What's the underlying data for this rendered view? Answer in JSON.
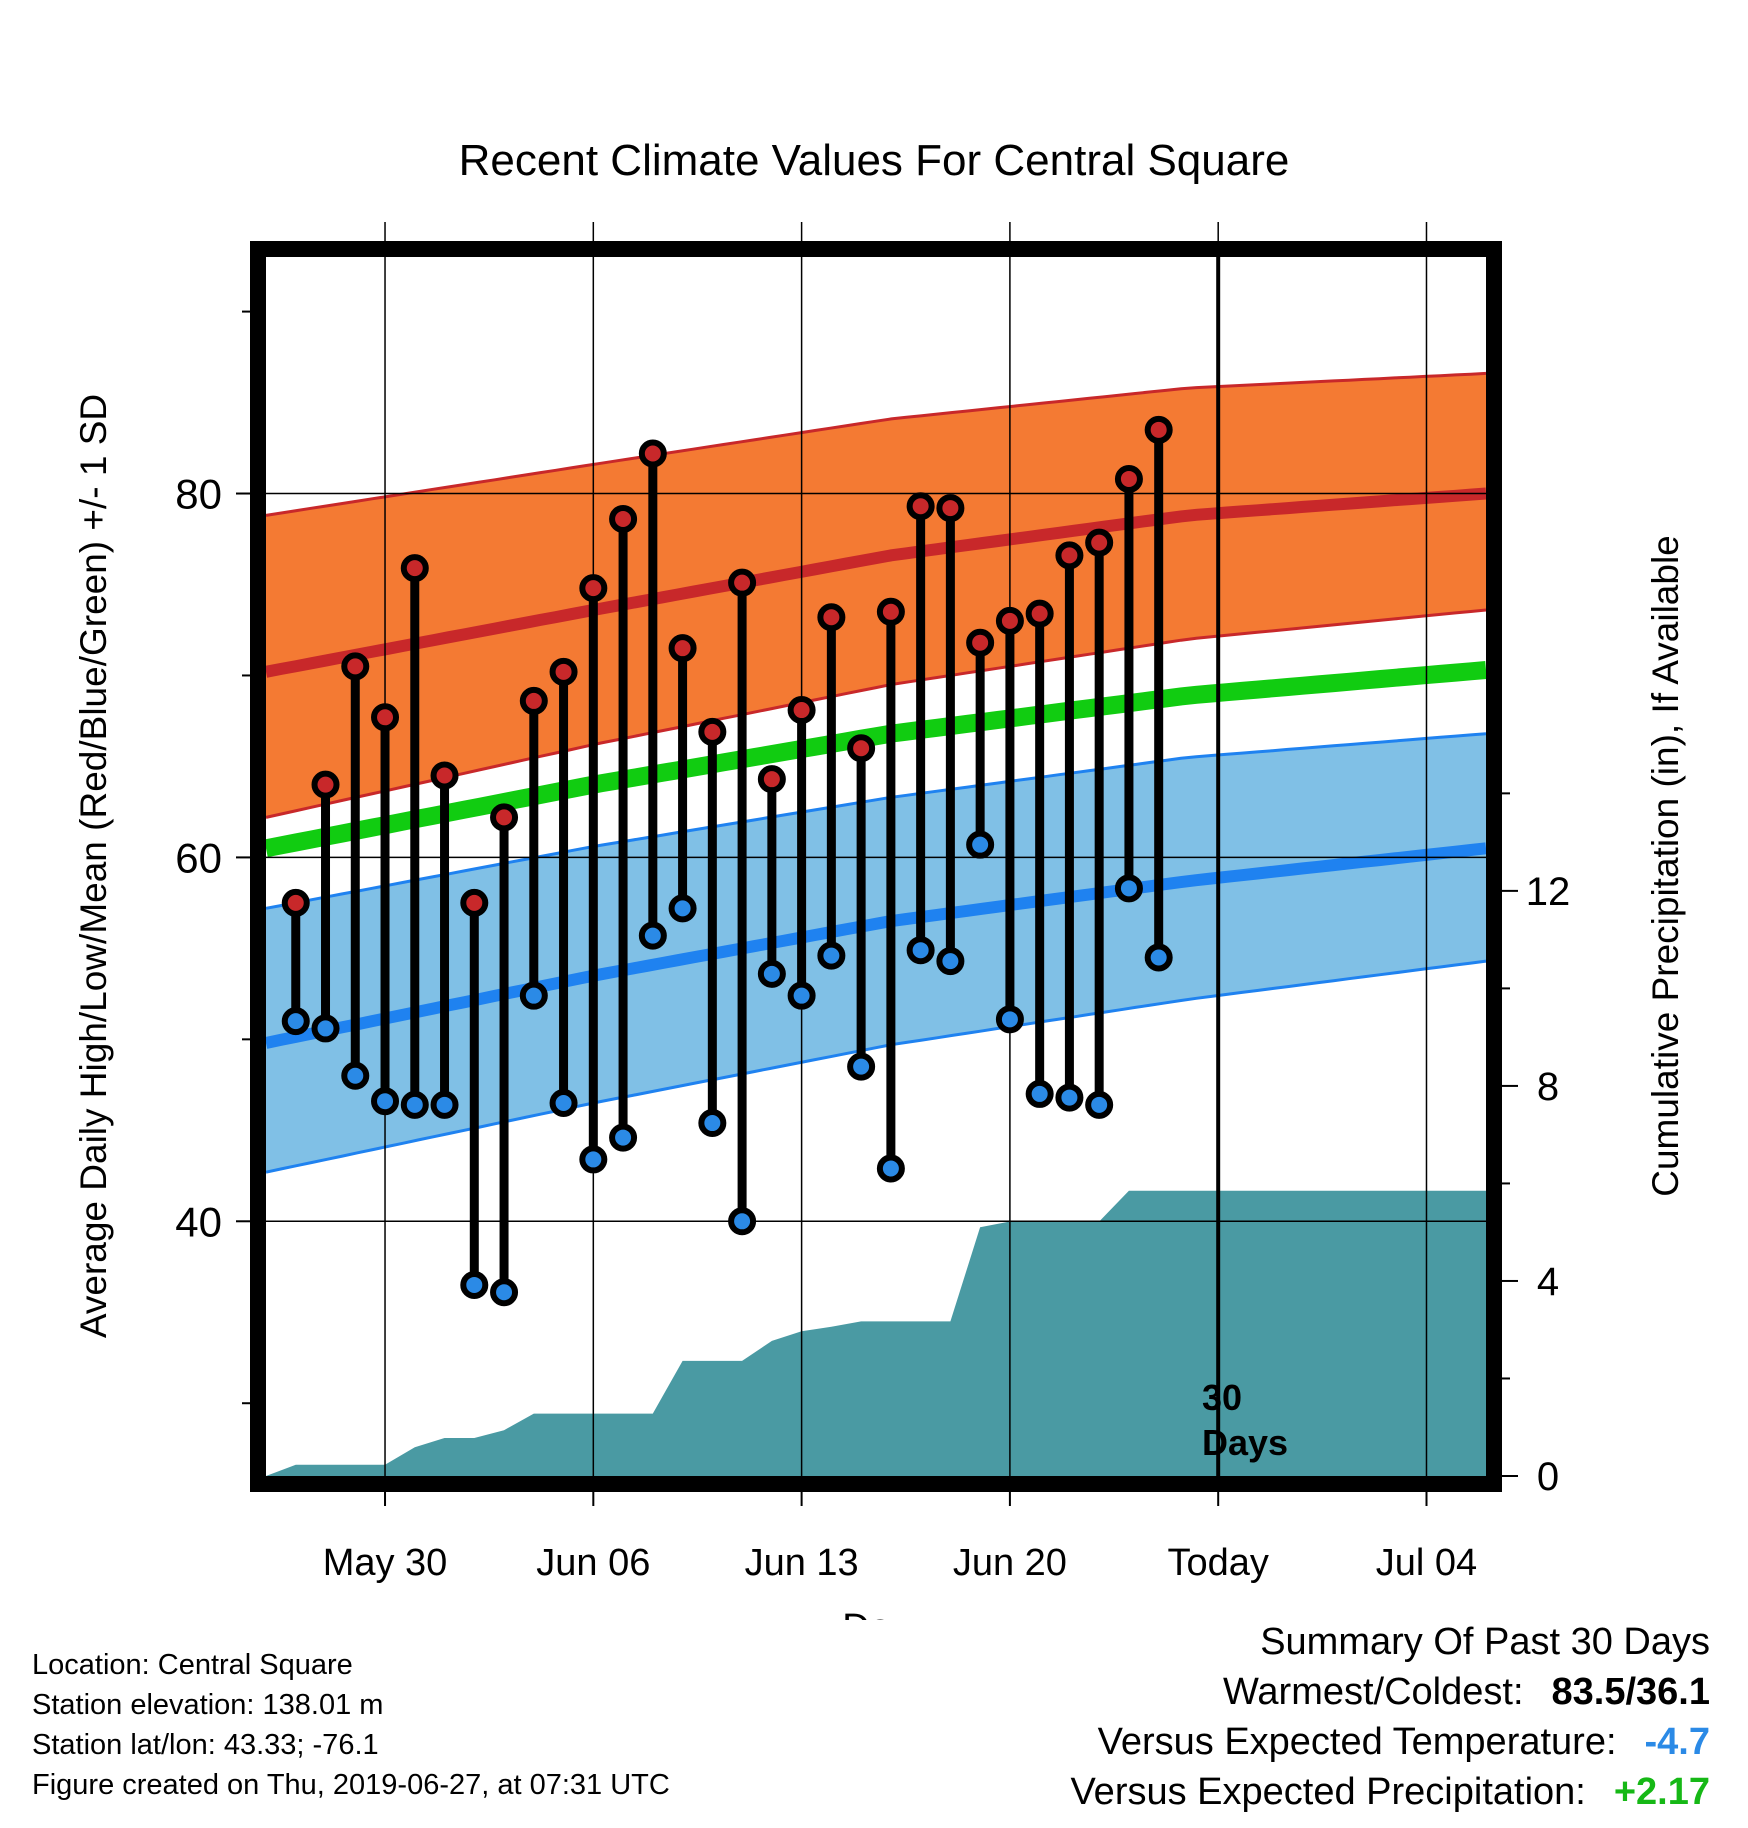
{
  "chart_data": {
    "type": "line",
    "title": "Recent Climate Values For Central Square",
    "xlabel": "Day",
    "ylabel": "Average Daily High/Low/Mean (Red/Blue/Green) +/- 1 SD",
    "y2label": "Cumulative Precipitation (in), If Available",
    "x_range": [
      "2019-05-26",
      "2019-07-06"
    ],
    "ylim": [
      26,
      93
    ],
    "y2lim": [
      0,
      25
    ],
    "y_ticks": [
      40,
      60,
      80
    ],
    "y2_ticks": [
      0,
      4,
      8,
      12
    ],
    "x_ticks": [
      {
        "date": "2019-05-30",
        "label": "May 30"
      },
      {
        "date": "2019-06-06",
        "label": "Jun 06"
      },
      {
        "date": "2019-06-13",
        "label": "Jun 13"
      },
      {
        "date": "2019-06-20",
        "label": "Jun 20"
      },
      {
        "date": "2019-06-27",
        "label": "Today"
      },
      {
        "date": "2019-07-04",
        "label": "Jul 04"
      }
    ],
    "today_marker": {
      "date": "2019-06-27",
      "label_line1": "30",
      "label_line2": "Days"
    },
    "normals": {
      "x": [
        "2019-05-26",
        "2019-06-06",
        "2019-06-16",
        "2019-06-26",
        "2019-07-06"
      ],
      "high_mean": [
        70.2,
        73.6,
        76.6,
        78.8,
        80.0
      ],
      "high_plus_sd": [
        78.8,
        81.6,
        84.1,
        85.8,
        86.6
      ],
      "high_minus_sd": [
        62.2,
        66.2,
        69.5,
        72.0,
        73.6
      ],
      "low_mean": [
        49.8,
        53.5,
        56.5,
        58.7,
        60.5
      ],
      "low_plus_sd": [
        57.2,
        60.6,
        63.3,
        65.5,
        66.8
      ],
      "low_minus_sd": [
        42.7,
        46.5,
        49.7,
        52.2,
        54.3
      ],
      "avg_mean": [
        60.5,
        64.0,
        66.8,
        68.9,
        70.3
      ]
    },
    "series": [
      {
        "name": "High",
        "color": "#c8282a",
        "x": [
          "2019-05-27",
          "2019-05-28",
          "2019-05-29",
          "2019-05-30",
          "2019-05-31",
          "2019-06-01",
          "2019-06-02",
          "2019-06-03",
          "2019-06-04",
          "2019-06-05",
          "2019-06-06",
          "2019-06-07",
          "2019-06-08",
          "2019-06-09",
          "2019-06-10",
          "2019-06-11",
          "2019-06-12",
          "2019-06-13",
          "2019-06-14",
          "2019-06-15",
          "2019-06-16",
          "2019-06-17",
          "2019-06-18",
          "2019-06-19",
          "2019-06-20",
          "2019-06-21",
          "2019-06-22",
          "2019-06-23",
          "2019-06-24",
          "2019-06-25",
          "2019-06-26"
        ],
        "values": [
          57.5,
          64.0,
          70.5,
          67.7,
          75.9,
          64.5,
          57.5,
          62.2,
          68.6,
          70.2,
          74.8,
          78.6,
          82.2,
          71.5,
          66.9,
          75.1,
          64.3,
          68.1,
          73.2,
          66.0,
          73.5,
          79.3,
          79.2,
          71.8,
          73.0,
          73.4,
          76.6,
          77.3,
          80.8,
          83.5,
          null
        ]
      },
      {
        "name": "Low",
        "color": "#2b8ae6",
        "x": [
          "2019-05-27",
          "2019-05-28",
          "2019-05-29",
          "2019-05-30",
          "2019-05-31",
          "2019-06-01",
          "2019-06-02",
          "2019-06-03",
          "2019-06-04",
          "2019-06-05",
          "2019-06-06",
          "2019-06-07",
          "2019-06-08",
          "2019-06-09",
          "2019-06-10",
          "2019-06-11",
          "2019-06-12",
          "2019-06-13",
          "2019-06-14",
          "2019-06-15",
          "2019-06-16",
          "2019-06-17",
          "2019-06-18",
          "2019-06-19",
          "2019-06-20",
          "2019-06-21",
          "2019-06-22",
          "2019-06-23",
          "2019-06-24",
          "2019-06-25",
          "2019-06-26"
        ],
        "values": [
          51.0,
          50.6,
          48.0,
          46.6,
          46.4,
          46.4,
          36.5,
          36.1,
          52.4,
          46.5,
          43.4,
          44.6,
          55.7,
          57.2,
          45.4,
          40.0,
          53.6,
          52.4,
          54.6,
          48.5,
          42.9,
          54.9,
          54.3,
          60.7,
          51.1,
          47.0,
          46.8,
          46.4,
          58.3,
          54.5,
          null
        ]
      },
      {
        "name": "Cumulative Precipitation",
        "color": "#4a9aa3",
        "axis": "y2",
        "x": [
          "2019-05-26",
          "2019-05-27",
          "2019-05-28",
          "2019-05-29",
          "2019-05-30",
          "2019-05-31",
          "2019-06-01",
          "2019-06-02",
          "2019-06-03",
          "2019-06-04",
          "2019-06-05",
          "2019-06-06",
          "2019-06-07",
          "2019-06-08",
          "2019-06-09",
          "2019-06-10",
          "2019-06-11",
          "2019-06-12",
          "2019-06-13",
          "2019-06-14",
          "2019-06-15",
          "2019-06-16",
          "2019-06-17",
          "2019-06-18",
          "2019-06-19",
          "2019-06-20",
          "2019-06-21",
          "2019-06-22",
          "2019-06-23",
          "2019-06-24",
          "2019-06-25",
          "2019-07-06"
        ],
        "values": [
          0.0,
          0.23,
          0.23,
          0.23,
          0.23,
          0.59,
          0.78,
          0.78,
          0.94,
          1.28,
          1.28,
          1.28,
          1.28,
          1.28,
          2.36,
          2.36,
          2.36,
          2.77,
          2.97,
          3.06,
          3.17,
          3.17,
          3.17,
          3.17,
          5.1,
          5.22,
          5.22,
          5.22,
          5.22,
          5.85,
          5.85,
          5.85
        ]
      }
    ]
  },
  "info": {
    "location": "Location: Central Square",
    "elevation": "Station elevation: 138.01 m",
    "latlon": "Station lat/lon: 43.33; -76.1",
    "created": "Figure created on Thu, 2019-06-27, at 07:31 UTC"
  },
  "summary": {
    "title": "Summary Of Past 30 Days",
    "warmest_label": "Warmest/Coldest:",
    "warmest_value": "83.5/36.1",
    "temp_label": "Versus Expected Temperature:",
    "temp_value": "-4.7",
    "temp_color": "#2b8ae6",
    "precip_label": "Versus Expected Precipitation:",
    "precip_value": "+2.17",
    "precip_color": "#16b816"
  },
  "colors": {
    "high_band": "#f47a33",
    "high_line": "#c8282a",
    "low_band": "#80c0e6",
    "low_line": "#1f82f0",
    "mean_line": "#11cc11",
    "precip_fill": "#4a9aa3"
  }
}
